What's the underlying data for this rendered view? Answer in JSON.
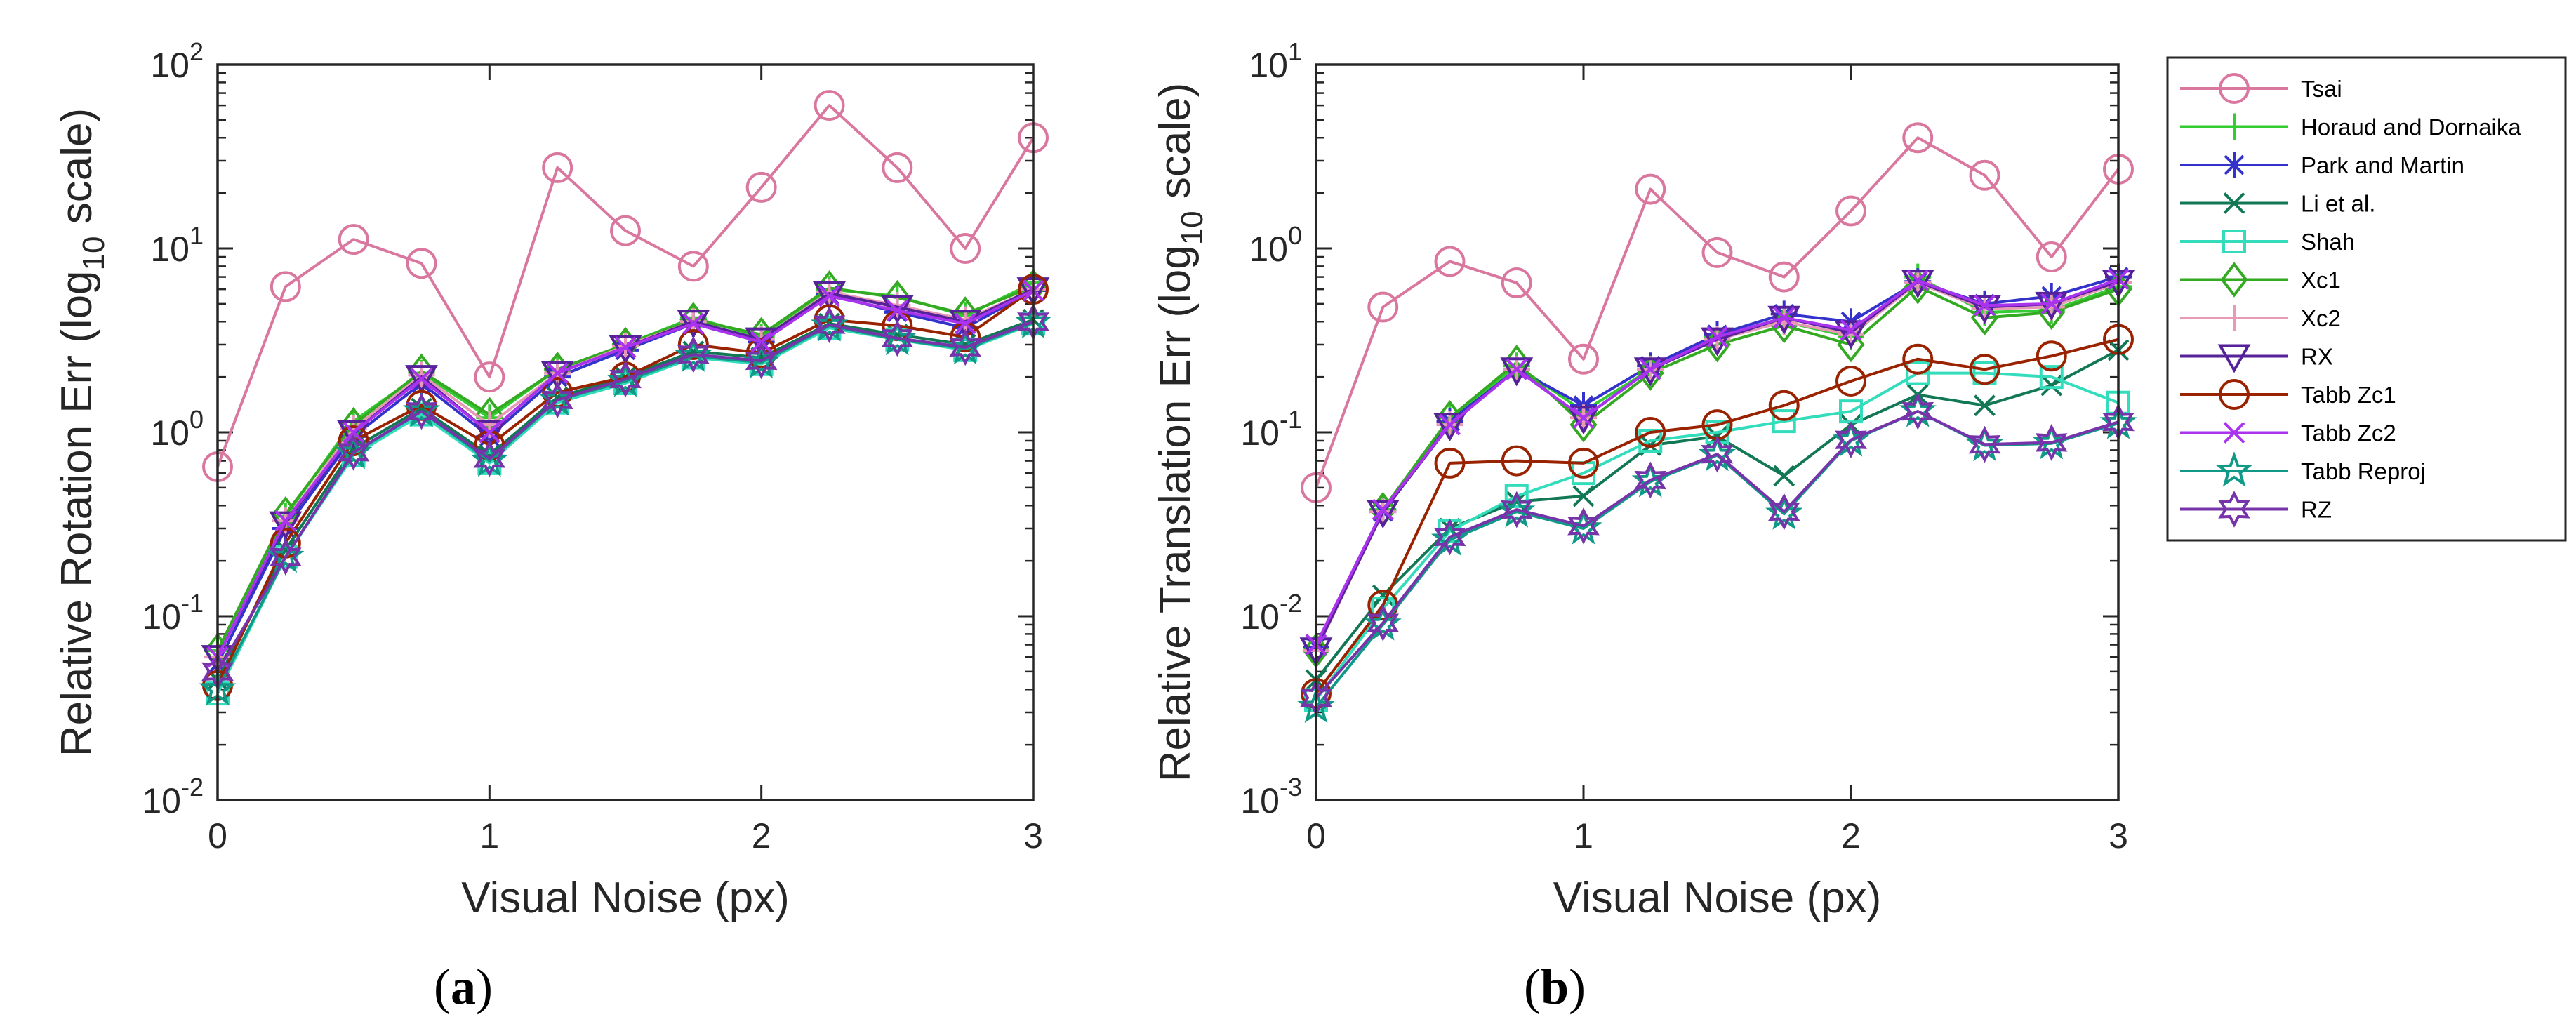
{
  "figure": {
    "panel_a_label": "a",
    "panel_b_label": "b"
  },
  "legend_entries": [
    {
      "name": "Tsai",
      "color": "#d9779f",
      "marker": "circle"
    },
    {
      "name": "Horaud and Dornaika",
      "color": "#33cc33",
      "marker": "plus"
    },
    {
      "name": "Park and Martin",
      "color": "#3333cc",
      "marker": "asterisk"
    },
    {
      "name": "Li et al.",
      "color": "#117755",
      "marker": "x"
    },
    {
      "name": "Shah",
      "color": "#33ddbb",
      "marker": "square"
    },
    {
      "name": "Xc1",
      "color": "#33aa22",
      "marker": "diamond"
    },
    {
      "name": "Xc2",
      "color": "#e899b5",
      "marker": "plus"
    },
    {
      "name": "RX",
      "color": "#55229a",
      "marker": "triangle-down"
    },
    {
      "name": "Tabb Zc1",
      "color": "#992200",
      "marker": "circle"
    },
    {
      "name": "Tabb Zc2",
      "color": "#aa33ee",
      "marker": "x"
    },
    {
      "name": "Tabb Reproj",
      "color": "#119988",
      "marker": "pentagram"
    },
    {
      "name": "RZ",
      "color": "#7733aa",
      "marker": "hexagram"
    }
  ],
  "chart_data": [
    {
      "type": "line",
      "panel": "a",
      "xlabel": "Visual Noise (px)",
      "ylabel": "Relative Rotation Err (log10 scale)",
      "ylabel_main": "Relative Rotation Err (log",
      "ylabel_sub": "10",
      "ylabel_tail": " scale)",
      "yscale": "log",
      "xlim": [
        0,
        3
      ],
      "ylim": [
        0.01,
        100
      ],
      "xticks": [
        "0",
        "1",
        "2",
        "3"
      ],
      "yticks": [
        {
          "value": 0.01,
          "base": "10",
          "exp": "-2"
        },
        {
          "value": 0.1,
          "base": "10",
          "exp": "-1"
        },
        {
          "value": 1,
          "base": "10",
          "exp": "0"
        },
        {
          "value": 10,
          "base": "10",
          "exp": "1"
        },
        {
          "value": 100,
          "base": "10",
          "exp": "2"
        }
      ],
      "x": [
        0,
        0.25,
        0.5,
        0.75,
        1.0,
        1.25,
        1.5,
        1.75,
        2.0,
        2.25,
        2.5,
        2.75,
        3.0
      ],
      "series": [
        {
          "name": "Tsai",
          "values": [
            0.65,
            6.2,
            11.2,
            8.3,
            2.0,
            27.5,
            12.5,
            8.0,
            21.5,
            60.0,
            27.5,
            10.0,
            40.0
          ]
        },
        {
          "name": "Horaud and Dornaika",
          "values": [
            0.065,
            0.35,
            1.15,
            2.1,
            1.2,
            2.2,
            3.0,
            4.2,
            3.3,
            6.0,
            5.5,
            4.3,
            6.5
          ]
        },
        {
          "name": "Park and Martin",
          "values": [
            0.055,
            0.3,
            0.95,
            1.85,
            0.95,
            2.0,
            2.8,
            3.9,
            3.1,
            5.6,
            4.5,
            3.7,
            5.9
          ]
        },
        {
          "name": "Li et al.",
          "values": [
            0.045,
            0.23,
            0.82,
            1.35,
            0.75,
            1.55,
            2.0,
            2.75,
            2.55,
            3.9,
            3.4,
            3.0,
            4.1
          ]
        },
        {
          "name": "Shah",
          "values": [
            0.038,
            0.21,
            0.75,
            1.25,
            0.68,
            1.45,
            1.85,
            2.55,
            2.35,
            3.7,
            3.2,
            2.8,
            3.9
          ]
        },
        {
          "name": "Xc1",
          "values": [
            0.065,
            0.36,
            1.1,
            2.15,
            1.25,
            2.2,
            3.0,
            4.1,
            3.4,
            6.1,
            5.4,
            4.4,
            6.2
          ]
        },
        {
          "name": "Xc2",
          "values": [
            0.06,
            0.33,
            1.05,
            2.05,
            1.1,
            2.1,
            2.95,
            4.0,
            3.2,
            5.8,
            4.9,
            4.1,
            6.0
          ]
        },
        {
          "name": "RX",
          "values": [
            0.06,
            0.32,
            1.0,
            2.0,
            1.0,
            2.1,
            2.9,
            4.0,
            3.2,
            5.7,
            4.8,
            4.0,
            6.0
          ]
        },
        {
          "name": "Tabb Zc1",
          "values": [
            0.042,
            0.25,
            0.9,
            1.4,
            0.85,
            1.65,
            2.0,
            3.0,
            2.7,
            4.1,
            3.8,
            3.3,
            6.0
          ]
        },
        {
          "name": "Tabb Zc2",
          "values": [
            0.06,
            0.33,
            1.0,
            1.95,
            1.0,
            2.1,
            2.9,
            3.9,
            3.1,
            5.5,
            4.6,
            3.9,
            5.9
          ]
        },
        {
          "name": "Tabb Reproj",
          "values": [
            0.04,
            0.21,
            0.77,
            1.3,
            0.7,
            1.5,
            1.9,
            2.6,
            2.4,
            3.8,
            3.2,
            2.85,
            3.95
          ]
        },
        {
          "name": "RZ",
          "values": [
            0.05,
            0.21,
            0.78,
            1.3,
            0.72,
            1.5,
            1.95,
            2.65,
            2.45,
            3.85,
            3.25,
            2.9,
            4.0
          ]
        }
      ]
    },
    {
      "type": "line",
      "panel": "b",
      "xlabel": "Visual Noise (px)",
      "ylabel": "Relative Translation Err (log10 scale)",
      "ylabel_main": "Relative Translation Err (log",
      "ylabel_sub": "10",
      "ylabel_tail": " scale)",
      "yscale": "log",
      "xlim": [
        0,
        3
      ],
      "ylim": [
        0.001,
        10
      ],
      "xticks": [
        "0",
        "1",
        "2",
        "3"
      ],
      "yticks": [
        {
          "value": 0.001,
          "base": "10",
          "exp": "-3"
        },
        {
          "value": 0.01,
          "base": "10",
          "exp": "-2"
        },
        {
          "value": 0.1,
          "base": "10",
          "exp": "-1"
        },
        {
          "value": 1,
          "base": "10",
          "exp": "0"
        },
        {
          "value": 10,
          "base": "10",
          "exp": "1"
        }
      ],
      "x": [
        0,
        0.25,
        0.5,
        0.75,
        1.0,
        1.25,
        1.5,
        1.75,
        2.0,
        2.25,
        2.5,
        2.75,
        3.0
      ],
      "series": [
        {
          "name": "Tsai",
          "values": [
            0.05,
            0.48,
            0.85,
            0.65,
            0.25,
            2.1,
            0.95,
            0.7,
            1.6,
            4.0,
            2.5,
            0.9,
            2.7
          ]
        },
        {
          "name": "Horaud and Dornaika",
          "values": [
            0.0065,
            0.038,
            0.12,
            0.23,
            0.13,
            0.22,
            0.33,
            0.4,
            0.33,
            0.7,
            0.45,
            0.46,
            0.62
          ]
        },
        {
          "name": "Park and Martin",
          "values": [
            0.0068,
            0.037,
            0.115,
            0.22,
            0.14,
            0.23,
            0.34,
            0.44,
            0.4,
            0.66,
            0.5,
            0.55,
            0.7
          ]
        },
        {
          "name": "Li et al.",
          "values": [
            0.0045,
            0.013,
            0.03,
            0.042,
            0.045,
            0.085,
            0.095,
            0.058,
            0.11,
            0.16,
            0.14,
            0.18,
            0.28
          ]
        },
        {
          "name": "Shah",
          "values": [
            0.0035,
            0.011,
            0.029,
            0.045,
            0.06,
            0.09,
            0.1,
            0.115,
            0.13,
            0.21,
            0.21,
            0.2,
            0.145
          ]
        },
        {
          "name": "Xc1",
          "values": [
            0.0065,
            0.038,
            0.12,
            0.24,
            0.11,
            0.21,
            0.3,
            0.38,
            0.3,
            0.62,
            0.42,
            0.45,
            0.6
          ]
        },
        {
          "name": "Xc2",
          "values": [
            0.0065,
            0.037,
            0.11,
            0.22,
            0.12,
            0.22,
            0.32,
            0.4,
            0.34,
            0.65,
            0.47,
            0.48,
            0.65
          ]
        },
        {
          "name": "RX",
          "values": [
            0.0066,
            0.037,
            0.11,
            0.22,
            0.12,
            0.22,
            0.32,
            0.42,
            0.35,
            0.66,
            0.48,
            0.5,
            0.66
          ]
        },
        {
          "name": "Tabb Zc1",
          "values": [
            0.0038,
            0.0115,
            0.068,
            0.07,
            0.068,
            0.1,
            0.11,
            0.14,
            0.19,
            0.25,
            0.22,
            0.26,
            0.32
          ]
        },
        {
          "name": "Tabb Zc2",
          "values": [
            0.007,
            0.038,
            0.11,
            0.22,
            0.12,
            0.22,
            0.33,
            0.42,
            0.36,
            0.67,
            0.49,
            0.5,
            0.68
          ]
        },
        {
          "name": "Tabb Reproj",
          "values": [
            0.0032,
            0.009,
            0.026,
            0.037,
            0.03,
            0.054,
            0.075,
            0.036,
            0.09,
            0.13,
            0.085,
            0.087,
            0.112
          ]
        },
        {
          "name": "RZ",
          "values": [
            0.0036,
            0.0092,
            0.027,
            0.038,
            0.031,
            0.055,
            0.076,
            0.037,
            0.091,
            0.13,
            0.086,
            0.088,
            0.114
          ]
        }
      ]
    }
  ]
}
